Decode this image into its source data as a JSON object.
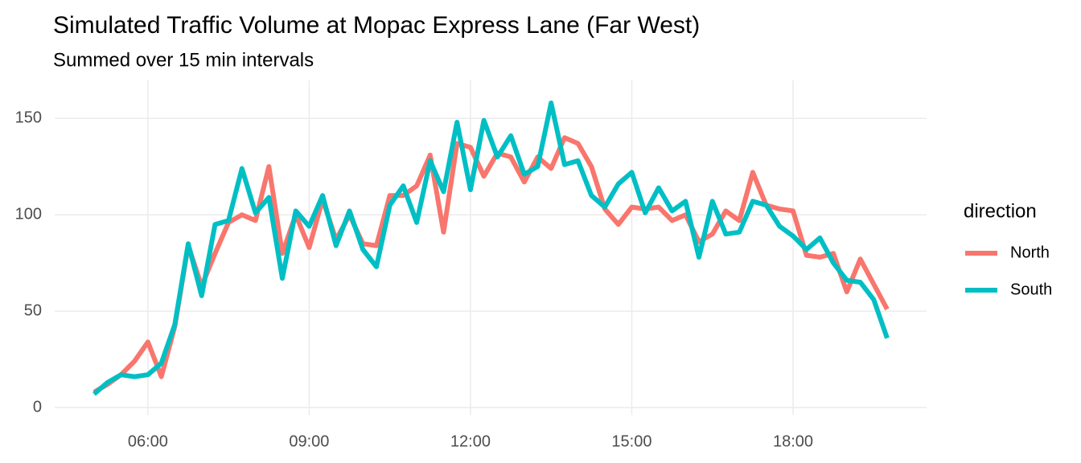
{
  "chart_data": {
    "type": "line",
    "title": "Simulated Traffic Volume at Mopac Express Lane (Far West)",
    "subtitle": "Summed over 15 min intervals",
    "x": [
      "05:00",
      "05:15",
      "05:30",
      "05:45",
      "06:00",
      "06:15",
      "06:30",
      "06:45",
      "07:00",
      "07:15",
      "07:30",
      "07:45",
      "08:00",
      "08:15",
      "08:30",
      "08:45",
      "09:00",
      "09:15",
      "09:30",
      "09:45",
      "10:00",
      "10:15",
      "10:30",
      "10:45",
      "11:00",
      "11:15",
      "11:30",
      "11:45",
      "12:00",
      "12:15",
      "12:30",
      "12:45",
      "13:00",
      "13:15",
      "13:30",
      "13:45",
      "14:00",
      "14:15",
      "14:30",
      "14:45",
      "15:00",
      "15:15",
      "15:30",
      "15:45",
      "16:00",
      "16:15",
      "16:30",
      "16:45",
      "17:00",
      "17:15",
      "17:30",
      "17:45",
      "18:00",
      "18:15",
      "18:30",
      "18:45",
      "19:00",
      "19:15",
      "19:30",
      "19:45"
    ],
    "series": [
      {
        "name": "North",
        "color": "#F8766D",
        "values": [
          8,
          12,
          17,
          24,
          34,
          16,
          42,
          84,
          63,
          80,
          96,
          100,
          97,
          125,
          80,
          100,
          83,
          108,
          87,
          100,
          85,
          84,
          110,
          110,
          115,
          131,
          91,
          137,
          135,
          120,
          132,
          130,
          117,
          130,
          124,
          140,
          137,
          125,
          103,
          95,
          104,
          103,
          104,
          97,
          100,
          86,
          90,
          102,
          97,
          122,
          105,
          103,
          102,
          79,
          78,
          80,
          60,
          77,
          64,
          51
        ]
      },
      {
        "name": "South",
        "color": "#00BFC4",
        "values": [
          7,
          13,
          17,
          16,
          17,
          23,
          43,
          85,
          58,
          95,
          97,
          124,
          101,
          109,
          67,
          102,
          94,
          110,
          84,
          102,
          82,
          73,
          105,
          115,
          96,
          128,
          112,
          148,
          113,
          149,
          130,
          141,
          121,
          125,
          158,
          126,
          128,
          110,
          104,
          116,
          122,
          101,
          114,
          102,
          107,
          78,
          107,
          90,
          91,
          107,
          105,
          94,
          89,
          82,
          88,
          75,
          66,
          65,
          56,
          36
        ]
      }
    ],
    "xlim": [
      "04:16",
      "20:29"
    ],
    "xticks": [
      "06:00",
      "09:00",
      "12:00",
      "15:00",
      "18:00"
    ],
    "ylim": [
      -0.55,
      165.55
    ],
    "yticks": [
      0,
      50,
      100,
      150
    ],
    "legend_title": "direction",
    "legend_position": "right",
    "grid": true
  }
}
